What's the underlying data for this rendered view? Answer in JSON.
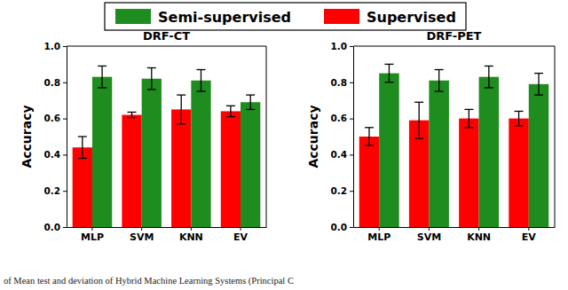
{
  "caption": "of Mean test and deviation of Hybrid Machine Learning Systems (Principal C",
  "chart_data": [
    {
      "type": "bar",
      "title": "DRF-CT",
      "y_label": "Accuracy",
      "legend": "top",
      "categories": [
        "MLP",
        "SVM",
        "KNN",
        "EV"
      ],
      "ylim": [
        0,
        1
      ],
      "yticks": [
        {
          "value": 0,
          "label": "0.0"
        },
        0.2,
        0.4,
        0.6,
        0.8,
        {
          "value": 1,
          "label": "1.0"
        }
      ],
      "series": [
        {
          "name": "Supervised",
          "color": "#ff0000",
          "values": [
            0.44,
            0.62,
            0.65,
            0.64
          ],
          "errors": [
            0.06,
            0.015,
            0.08,
            0.03
          ]
        },
        {
          "name": "Semi-supervised",
          "color": "#1e8c1e",
          "values": [
            0.83,
            0.82,
            0.81,
            0.69
          ],
          "errors": [
            0.06,
            0.06,
            0.06,
            0.04
          ]
        }
      ]
    },
    {
      "type": "bar",
      "title": "DRF-PET",
      "y_label": "Accuracy",
      "categories": [
        "MLP",
        "SVM",
        "KNN",
        "EV"
      ],
      "ylim": [
        0,
        1
      ],
      "yticks": [
        {
          "value": 0,
          "label": "0.0"
        },
        0.2,
        0.4,
        0.6,
        0.8,
        {
          "value": 1,
          "label": "1.0"
        }
      ],
      "series": [
        {
          "color": "#ff0000",
          "values": [
            0.5,
            0.59,
            0.6,
            0.6
          ],
          "errors": [
            0.05,
            0.1,
            0.05,
            0.04
          ]
        },
        {
          "color": "#1e8c1e",
          "values": [
            0.85,
            0.81,
            0.83,
            0.79
          ],
          "errors": [
            0.05,
            0.06,
            0.06,
            0.06
          ]
        }
      ]
    }
  ]
}
